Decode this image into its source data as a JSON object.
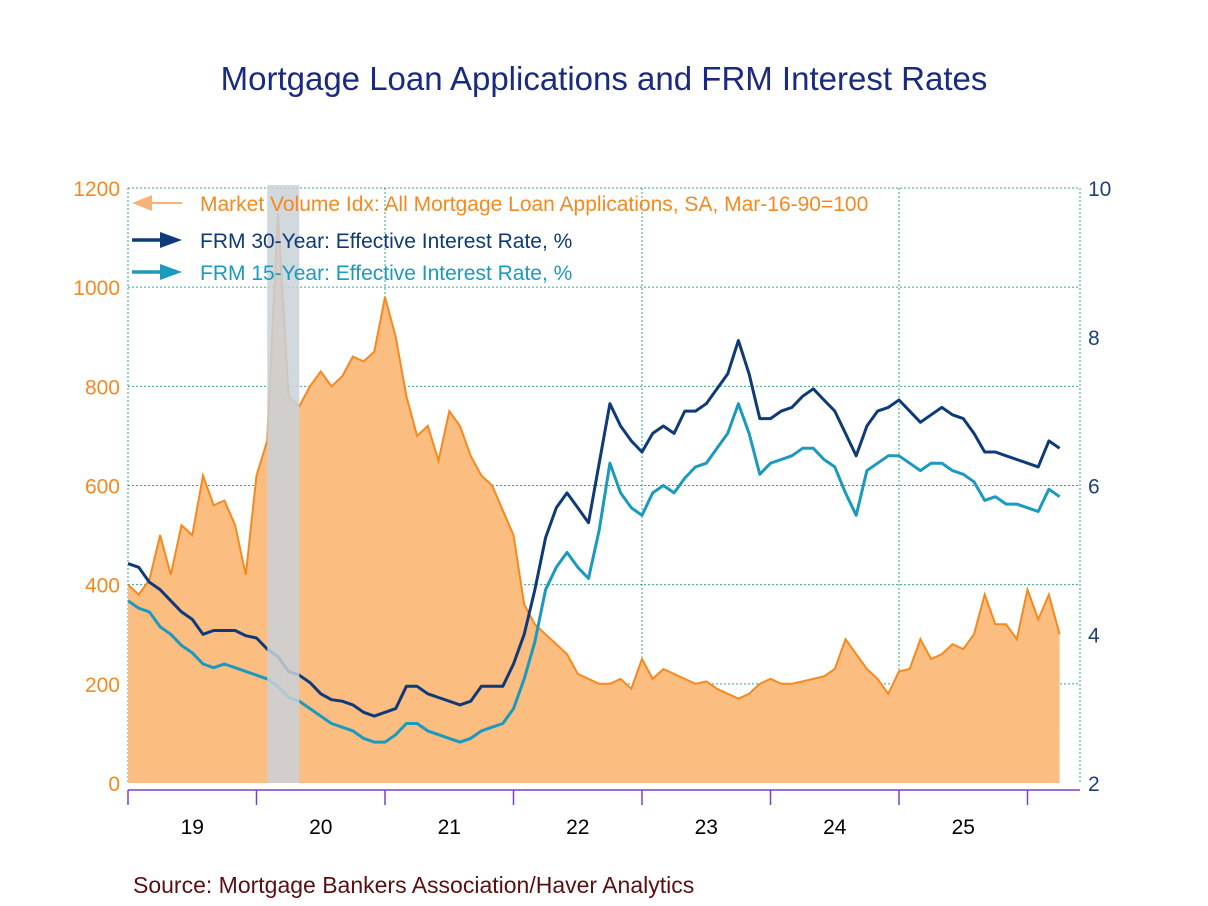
{
  "chart_data": {
    "type": "area+line",
    "title": "Mortgage Loan Applications and FRM Interest Rates",
    "source": "Source:  Mortgage Bankers Association/Haver Analytics",
    "x_tick_labels": [
      "19",
      "20",
      "21",
      "22",
      "23",
      "24",
      "25"
    ],
    "left_axis": {
      "ylim": [
        0,
        1200
      ],
      "ticks": [
        "0",
        "200",
        "400",
        "600",
        "800",
        "1000",
        "1200"
      ],
      "color": "#f5891f"
    },
    "right_axis": {
      "ylim": [
        2,
        10
      ],
      "ticks": [
        "2",
        "4",
        "6",
        "8",
        "10"
      ],
      "color": "#1f3f7f"
    },
    "grid": true,
    "legend_placement": "top-left",
    "recession": {
      "start": "2020-02",
      "end": "2020-04",
      "color": "#c9d1d8"
    },
    "x": [
      "2019-01",
      "2019-02",
      "2019-03",
      "2019-04",
      "2019-05",
      "2019-06",
      "2019-07",
      "2019-08",
      "2019-09",
      "2019-10",
      "2019-11",
      "2019-12",
      "2020-01",
      "2020-02",
      "2020-03",
      "2020-04",
      "2020-05",
      "2020-06",
      "2020-07",
      "2020-08",
      "2020-09",
      "2020-10",
      "2020-11",
      "2020-12",
      "2021-01",
      "2021-02",
      "2021-03",
      "2021-04",
      "2021-05",
      "2021-06",
      "2021-07",
      "2021-08",
      "2021-09",
      "2021-10",
      "2021-11",
      "2021-12",
      "2022-01",
      "2022-02",
      "2022-03",
      "2022-04",
      "2022-05",
      "2022-06",
      "2022-07",
      "2022-08",
      "2022-09",
      "2022-10",
      "2022-11",
      "2022-12",
      "2023-01",
      "2023-02",
      "2023-03",
      "2023-04",
      "2023-05",
      "2023-06",
      "2023-07",
      "2023-08",
      "2023-09",
      "2023-10",
      "2023-11",
      "2023-12",
      "2024-01",
      "2024-02",
      "2024-03",
      "2024-04",
      "2024-05",
      "2024-06",
      "2024-07",
      "2024-08",
      "2024-09",
      "2024-10",
      "2024-11",
      "2024-12",
      "2025-01",
      "2025-02",
      "2025-03",
      "2025-04",
      "2025-05",
      "2025-06",
      "2025-07",
      "2025-08",
      "2025-09",
      "2025-10",
      "2025-11",
      "2025-12",
      "2026-01",
      "2026-02",
      "2026-03",
      "2026-04"
    ],
    "series": [
      {
        "name": "Market Volume Idx: All Mortgage Loan Applications, SA, Mar-16-90=100",
        "axis": "left",
        "style": "area",
        "color": "#f5891f",
        "fill": "#fbbd80",
        "values": [
          400,
          380,
          410,
          500,
          420,
          520,
          500,
          620,
          560,
          570,
          520,
          420,
          620,
          690,
          1150,
          780,
          760,
          800,
          830,
          800,
          820,
          860,
          850,
          870,
          980,
          900,
          780,
          700,
          720,
          650,
          750,
          720,
          660,
          620,
          600,
          550,
          500,
          360,
          320,
          300,
          280,
          260,
          220,
          210,
          200,
          200,
          210,
          190,
          250,
          210,
          230,
          220,
          210,
          200,
          205,
          190,
          180,
          170,
          180,
          200,
          210,
          200,
          200,
          205,
          210,
          215,
          230,
          290,
          260,
          230,
          210,
          180,
          225,
          230,
          290,
          250,
          260,
          280,
          270,
          300,
          380,
          320,
          320,
          290,
          390,
          330,
          380,
          300
        ]
      },
      {
        "name": "FRM 30-Year: Effective Interest Rate, %",
        "axis": "right",
        "style": "line",
        "color": "#0e3a7a",
        "values": [
          4.95,
          4.9,
          4.7,
          4.6,
          4.45,
          4.3,
          4.2,
          4.0,
          4.05,
          4.05,
          4.05,
          3.98,
          3.95,
          3.8,
          3.7,
          3.5,
          3.45,
          3.35,
          3.2,
          3.12,
          3.1,
          3.05,
          2.95,
          2.9,
          2.95,
          3.0,
          3.3,
          3.3,
          3.2,
          3.15,
          3.1,
          3.05,
          3.1,
          3.3,
          3.3,
          3.3,
          3.6,
          4.0,
          4.6,
          5.3,
          5.7,
          5.9,
          5.7,
          5.5,
          6.3,
          7.1,
          6.8,
          6.6,
          6.45,
          6.7,
          6.8,
          6.7,
          7.0,
          7.0,
          7.1,
          7.3,
          7.5,
          7.95,
          7.5,
          6.9,
          6.9,
          7.0,
          7.05,
          7.2,
          7.3,
          7.15,
          7.0,
          6.7,
          6.4,
          6.8,
          7.0,
          7.05,
          7.15,
          7.0,
          6.85,
          6.95,
          7.05,
          6.95,
          6.9,
          6.7,
          6.45,
          6.45,
          6.4,
          6.35,
          6.3,
          6.25,
          6.6,
          6.5
        ]
      },
      {
        "name": "FRM 15-Year: Effective Interest Rate, %",
        "axis": "right",
        "style": "line",
        "color": "#1a9abf",
        "values": [
          4.45,
          4.35,
          4.3,
          4.1,
          4.0,
          3.85,
          3.75,
          3.6,
          3.55,
          3.6,
          3.55,
          3.5,
          3.45,
          3.4,
          3.3,
          3.15,
          3.1,
          3.0,
          2.9,
          2.8,
          2.75,
          2.7,
          2.6,
          2.55,
          2.55,
          2.65,
          2.8,
          2.8,
          2.7,
          2.65,
          2.6,
          2.55,
          2.6,
          2.7,
          2.75,
          2.8,
          3.0,
          3.4,
          3.9,
          4.6,
          4.9,
          5.1,
          4.9,
          4.75,
          5.4,
          6.3,
          5.9,
          5.7,
          5.6,
          5.9,
          6.0,
          5.9,
          6.1,
          6.25,
          6.3,
          6.5,
          6.7,
          7.1,
          6.7,
          6.15,
          6.3,
          6.35,
          6.4,
          6.5,
          6.5,
          6.35,
          6.25,
          5.9,
          5.6,
          6.2,
          6.3,
          6.4,
          6.4,
          6.3,
          6.2,
          6.3,
          6.3,
          6.2,
          6.15,
          6.05,
          5.8,
          5.85,
          5.75,
          5.75,
          5.7,
          5.65,
          5.95,
          5.85
        ]
      }
    ]
  }
}
